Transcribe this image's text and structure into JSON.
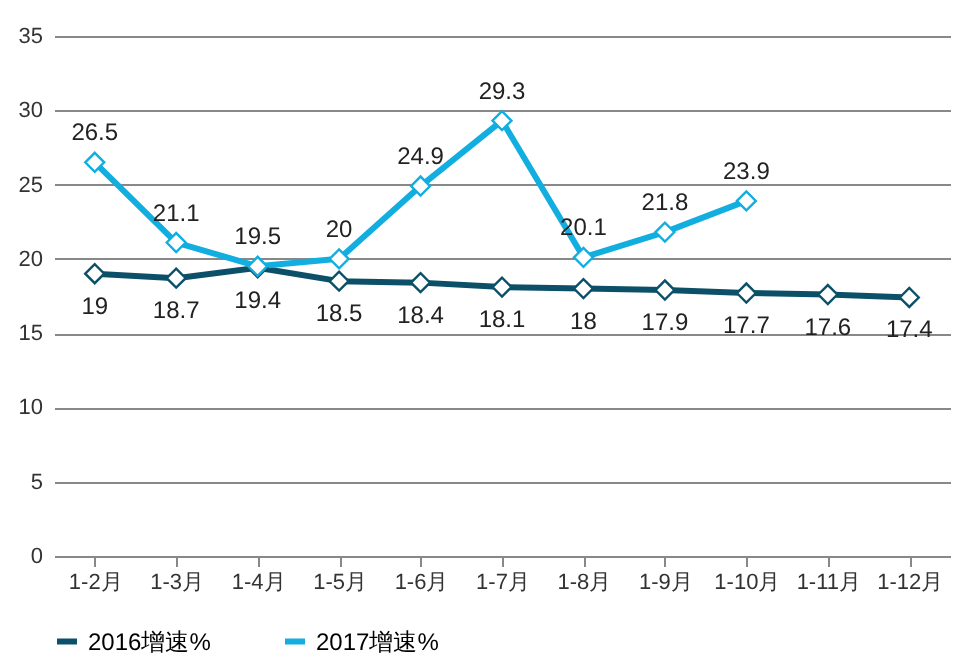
{
  "chart_data": {
    "type": "line",
    "categories": [
      "1-2月",
      "1-3月",
      "1-4月",
      "1-5月",
      "1-6月",
      "1-7月",
      "1-8月",
      "1-9月",
      "1-10月",
      "1-11月",
      "1-12月"
    ],
    "series": [
      {
        "name": "2016增速%",
        "color": "#0b5068",
        "values": [
          19,
          18.7,
          19.4,
          18.5,
          18.4,
          18.1,
          18,
          17.9,
          17.7,
          17.6,
          17.4
        ]
      },
      {
        "name": "2017增速%",
        "color": "#12aee0",
        "values": [
          26.5,
          21.1,
          19.5,
          20,
          24.9,
          29.3,
          20.1,
          21.8,
          23.9,
          null,
          null
        ]
      }
    ],
    "ylim": [
      0,
      35
    ],
    "yticks": [
      0,
      5,
      10,
      15,
      20,
      25,
      30,
      35
    ],
    "grid": "y",
    "legend": "bottom",
    "marker": "diamond",
    "line_style": "solid",
    "data_labels": true
  }
}
